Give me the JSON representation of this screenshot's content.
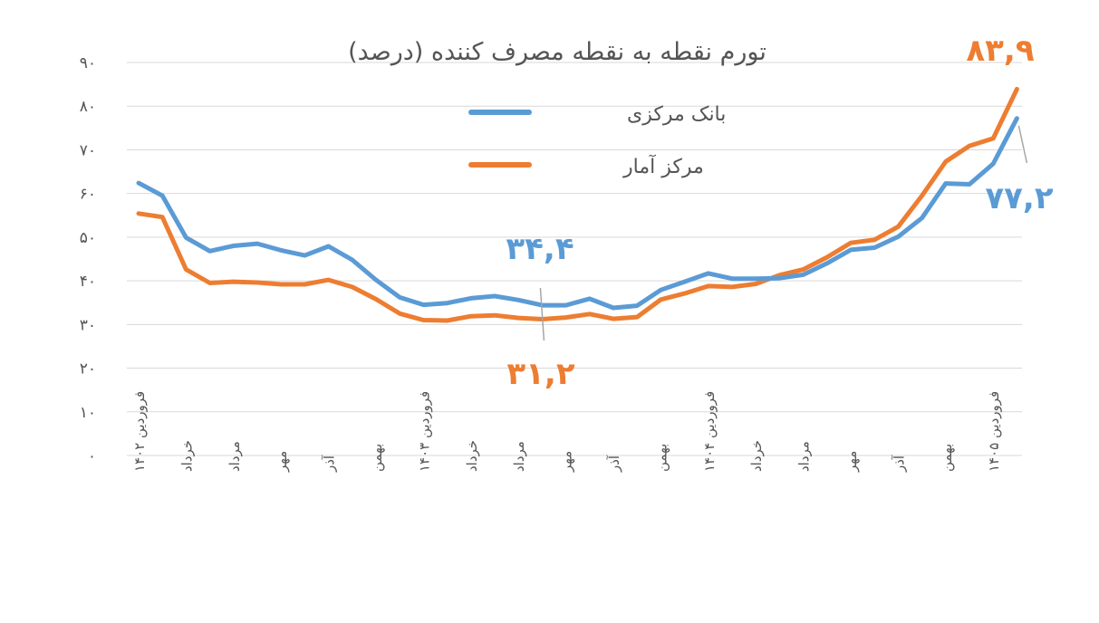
{
  "chart_data": {
    "type": "line",
    "title": "تورم نقطه به نقطه مصرف کننده (درصد)",
    "xlabel": "",
    "ylabel": "",
    "ylim": [
      0,
      90
    ],
    "yticks": [
      "۰",
      "۱۰",
      "۲۰",
      "۳۰",
      "۴۰",
      "۵۰",
      "۶۰",
      "۷۰",
      "۸۰",
      "۹۰"
    ],
    "ytick_values": [
      0,
      10,
      20,
      30,
      40,
      50,
      60,
      70,
      80,
      90
    ],
    "grid": true,
    "legend_position": "top-center",
    "x_labels": [
      {
        "index": 0,
        "text": "فروردین ۱۴۰۲"
      },
      {
        "index": 2,
        "text": "خرداد"
      },
      {
        "index": 4,
        "text": "مرداد"
      },
      {
        "index": 6,
        "text": "مهر"
      },
      {
        "index": 8,
        "text": "آذر"
      },
      {
        "index": 10,
        "text": "بهمن"
      },
      {
        "index": 12,
        "text": "فروردین ۱۴۰۳"
      },
      {
        "index": 14,
        "text": "خرداد"
      },
      {
        "index": 16,
        "text": "مرداد"
      },
      {
        "index": 18,
        "text": "مهر"
      },
      {
        "index": 20,
        "text": "آذر"
      },
      {
        "index": 22,
        "text": "بهمن"
      },
      {
        "index": 24,
        "text": "فروردین ۱۴۰۴"
      },
      {
        "index": 26,
        "text": "خرداد"
      },
      {
        "index": 28,
        "text": "مرداد"
      },
      {
        "index": 30,
        "text": "مهر"
      },
      {
        "index": 32,
        "text": "آذر"
      },
      {
        "index": 34,
        "text": "بهمن"
      },
      {
        "index": 36,
        "text": "فروردین ۱۴۰۵"
      }
    ],
    "series": [
      {
        "name": "بانک مرکزی",
        "color": "#5B9BD5",
        "values": [
          62.4,
          59.5,
          49.9,
          46.8,
          48.0,
          48.5,
          47.0,
          45.8,
          47.9,
          44.8,
          40.2,
          36.2,
          34.5,
          34.9,
          36.0,
          36.5,
          35.6,
          34.4,
          34.4,
          35.9,
          33.8,
          34.3,
          37.9,
          39.8,
          41.7,
          40.5,
          40.5,
          40.6,
          41.4,
          44.0,
          47.1,
          47.6,
          50.1,
          54.4,
          62.3,
          62.1,
          66.8,
          77.2
        ]
      },
      {
        "name": "مرکز آمار",
        "color": "#ED7D31",
        "values": [
          55.4,
          54.6,
          42.6,
          39.5,
          39.8,
          39.6,
          39.2,
          39.2,
          40.2,
          38.6,
          35.8,
          32.5,
          31.0,
          30.9,
          31.9,
          32.1,
          31.5,
          31.2,
          31.6,
          32.4,
          31.3,
          31.7,
          35.7,
          37.1,
          38.8,
          38.6,
          39.3,
          41.3,
          42.6,
          45.4,
          48.7,
          49.4,
          52.4,
          59.5,
          67.3,
          70.9,
          72.6,
          83.9
        ]
      }
    ],
    "annotations": [
      {
        "text": "۳۴,۴",
        "series": 0,
        "index": 17,
        "color": "#5B9BD5"
      },
      {
        "text": "۳۱,۲",
        "series": 1,
        "index": 17,
        "color": "#ED7D31"
      },
      {
        "text": "۸۳,۹",
        "series": 1,
        "index": 37,
        "color": "#ED7D31"
      },
      {
        "text": "۷۷,۲",
        "series": 0,
        "index": 37,
        "color": "#5B9BD5"
      }
    ]
  }
}
